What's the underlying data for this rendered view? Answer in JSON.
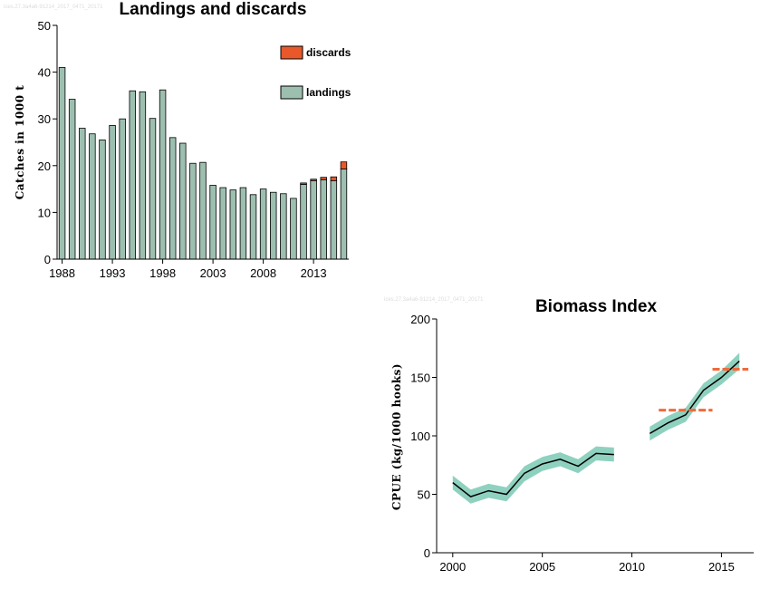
{
  "charts": {
    "landings": {
      "watermark": "ices.27.3a4a6-91214_2017_0471_20171",
      "title": "Landings and discards",
      "ylabel": "Catches in 1000 t",
      "legend": {
        "discards": "discards",
        "landings": "landings"
      }
    },
    "biomass": {
      "watermark": "ices.27.3a4a6-91214_2017_0471_20171",
      "title": "Biomass Index",
      "ylabel": "CPUE (kg/1000 hooks)"
    }
  },
  "chart_data": [
    {
      "type": "bar",
      "title": "Landings and discards",
      "xlabel": "",
      "ylabel": "Catches in 1000 t",
      "ylim": [
        0,
        50
      ],
      "yticks": [
        0,
        10,
        20,
        30,
        40,
        50
      ],
      "xticks": [
        1988,
        1993,
        1998,
        2003,
        2008,
        2013
      ],
      "legend_position": "top-right",
      "stacked": true,
      "categories": [
        1988,
        1989,
        1990,
        1991,
        1992,
        1993,
        1994,
        1995,
        1996,
        1997,
        1998,
        1999,
        2000,
        2001,
        2002,
        2003,
        2004,
        2005,
        2006,
        2007,
        2008,
        2009,
        2010,
        2011,
        2012,
        2013,
        2014,
        2015,
        2016
      ],
      "series": [
        {
          "name": "landings",
          "color": "#9dbfb0",
          "values": [
            41,
            34.2,
            28,
            26.8,
            25.5,
            28.6,
            30,
            36,
            35.8,
            30.1,
            36.2,
            26,
            24.8,
            20.5,
            20.7,
            15.8,
            15.3,
            14.8,
            15.3,
            13.8,
            15,
            14.3,
            14,
            13,
            16,
            16.8,
            17,
            16.8,
            19.3
          ]
        },
        {
          "name": "discards",
          "color": "#e8582a",
          "values": [
            0,
            0,
            0,
            0,
            0,
            0,
            0,
            0,
            0,
            0,
            0,
            0,
            0,
            0,
            0,
            0,
            0,
            0,
            0,
            0,
            0,
            0,
            0,
            0,
            0.3,
            0.3,
            0.5,
            0.8,
            1.5
          ]
        }
      ]
    },
    {
      "type": "line",
      "title": "Biomass Index",
      "xlabel": "",
      "ylabel": "CPUE (kg/1000 hooks)",
      "xlim": [
        1999.1,
        2016.8
      ],
      "ylim": [
        0,
        200
      ],
      "yticks": [
        0,
        50,
        100,
        150,
        200
      ],
      "xticks": [
        2000,
        2005,
        2010,
        2015
      ],
      "band_color": "#8fd1bf",
      "line_color": "#000000",
      "mean_color": "#f06a3a",
      "series": [
        {
          "name": "",
          "x": [
            2000,
            2001,
            2002,
            2003,
            2004,
            2005,
            2006,
            2007,
            2008,
            2009
          ],
          "y": [
            60,
            48,
            53,
            50,
            68,
            76,
            80,
            74,
            85,
            84
          ],
          "lower": [
            54,
            42,
            47,
            44,
            61,
            70,
            74,
            68,
            79,
            78
          ],
          "upper": [
            66,
            54,
            59,
            56,
            74,
            82,
            86,
            80,
            91,
            90
          ]
        },
        {
          "name": "",
          "x": [
            2011,
            2012,
            2013,
            2014,
            2015,
            2016
          ],
          "y": [
            102,
            111,
            118,
            139,
            150,
            164
          ],
          "lower": [
            96,
            105,
            112,
            133,
            144,
            157
          ],
          "upper": [
            108,
            117,
            124,
            145,
            156,
            171
          ]
        }
      ],
      "reference_means": [
        {
          "x_start": 2011.5,
          "x_end": 2014.5,
          "y": 122
        },
        {
          "x_start": 2014.5,
          "x_end": 2016.5,
          "y": 157
        }
      ]
    }
  ]
}
